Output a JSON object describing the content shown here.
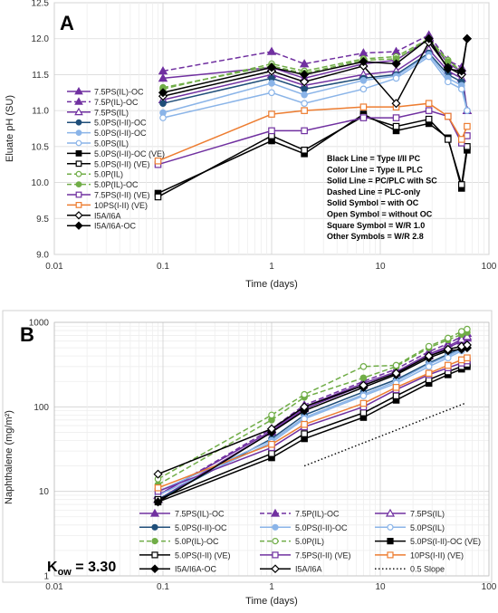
{
  "chart_data": [
    {
      "type": "line",
      "panel_label": "A",
      "xlabel": "Time (days)",
      "ylabel": "Eluate pH (SU)",
      "xscale": "log",
      "xlim": [
        0.01,
        100
      ],
      "ylim": [
        9.0,
        12.5
      ],
      "x_ticks": [
        "0.01",
        "0.1",
        "1",
        "10",
        "100"
      ],
      "y_ticks": [
        "9.0",
        "9.5",
        "10.0",
        "10.5",
        "11.0",
        "11.5",
        "12.0",
        "12.5"
      ],
      "grid": true,
      "legend_position": "left-middle",
      "annotation_lines": [
        "Black Line = Type I/II PC",
        "Color Line = Type IL PLC",
        "Solid Line = PC/PLC with SC",
        "Dashed Line = PLC-only",
        "Solid Symbol = with OC",
        "Open Symbol = without OC",
        "Square Symbol = W/R 1.0",
        "Other Symbols = W/R 2.8"
      ],
      "series": [
        {
          "name": "7.5PS(IL)-OC",
          "color": "#7030a0",
          "dash": false,
          "marker": "triangle",
          "filled": true,
          "x": [
            0.1,
            1,
            2,
            7,
            14,
            28,
            42,
            56,
            63
          ],
          "y": [
            11.45,
            11.6,
            11.45,
            11.65,
            11.7,
            12.0,
            11.65,
            11.55,
            11.0
          ]
        },
        {
          "name": "7.5P(IL)-OC",
          "color": "#7030a0",
          "dash": true,
          "marker": "triangle",
          "filled": true,
          "x": [
            0.1,
            1,
            2,
            7,
            14,
            28,
            42,
            56
          ],
          "y": [
            11.55,
            11.82,
            11.65,
            11.8,
            11.82,
            12.05,
            11.7,
            11.6
          ]
        },
        {
          "name": "7.5PS(IL)",
          "color": "#7030a0",
          "dash": false,
          "marker": "triangle",
          "filled": false,
          "x": [
            0.1,
            1,
            2,
            7,
            14,
            28,
            42,
            56,
            63
          ],
          "y": [
            11.15,
            11.5,
            11.35,
            11.5,
            11.55,
            11.85,
            11.55,
            11.45,
            11.0
          ]
        },
        {
          "name": "5.0PS(I-II)-OC",
          "color": "#1f4e79",
          "dash": false,
          "marker": "circle",
          "filled": true,
          "x": [
            0.1,
            1,
            2,
            7,
            14,
            28,
            42,
            56,
            63
          ],
          "y": [
            11.1,
            11.45,
            11.3,
            11.45,
            11.5,
            11.8,
            11.5,
            11.4,
            11.0
          ]
        },
        {
          "name": "5.0PS(I-II)-OC",
          "color": "#8ab4e8",
          "dash": false,
          "marker": "circle",
          "filled": true,
          "x": [
            0.1,
            1,
            2,
            7,
            14,
            28,
            42,
            56,
            63
          ],
          "y": [
            10.97,
            11.38,
            11.22,
            11.42,
            11.48,
            11.78,
            11.45,
            11.35,
            11.0
          ]
        },
        {
          "name": "5.0PS(IL)",
          "color": "#8ab4e8",
          "dash": false,
          "marker": "circle",
          "filled": false,
          "x": [
            0.1,
            1,
            2,
            7,
            14,
            28,
            42,
            56,
            63
          ],
          "y": [
            10.9,
            11.25,
            11.1,
            11.3,
            11.45,
            11.75,
            11.4,
            11.3,
            11.0
          ]
        },
        {
          "name": "5.0PS(I-II)-OC (VE)",
          "color": "#000000",
          "dash": false,
          "marker": "square",
          "filled": true,
          "x": [
            0.09,
            1,
            2,
            7,
            14,
            28,
            42,
            56,
            63
          ],
          "y": [
            9.85,
            10.58,
            10.4,
            10.95,
            10.72,
            10.82,
            10.62,
            9.92,
            10.45
          ]
        },
        {
          "name": "5.0PS(I-II) (VE)",
          "color": "#000000",
          "dash": false,
          "marker": "square",
          "filled": false,
          "x": [
            0.09,
            1,
            2,
            7,
            14,
            28,
            42,
            56,
            63
          ],
          "y": [
            9.8,
            10.65,
            10.45,
            10.92,
            10.78,
            10.88,
            10.6,
            9.97,
            10.5
          ]
        },
        {
          "name": "5.0P(IL)",
          "color": "#70ad47",
          "dash": true,
          "marker": "circle",
          "filled": false,
          "x": [
            0.1,
            1,
            2,
            7,
            14,
            28,
            42,
            56
          ],
          "y": [
            11.3,
            11.65,
            11.55,
            11.72,
            11.75,
            12.0,
            11.7,
            11.55
          ]
        },
        {
          "name": "5.0P(IL)-OC",
          "color": "#70ad47",
          "dash": true,
          "marker": "circle",
          "filled": true,
          "x": [
            0.1,
            1,
            2,
            7,
            14,
            28,
            42,
            56
          ],
          "y": [
            11.32,
            11.62,
            11.52,
            11.7,
            11.72,
            11.98,
            11.68,
            11.55
          ]
        },
        {
          "name": "7.5PS(I-II) (VE)",
          "color": "#7030a0",
          "dash": false,
          "marker": "square",
          "filled": false,
          "x": [
            0.09,
            1,
            2,
            7,
            14,
            28,
            42,
            56,
            63
          ],
          "y": [
            10.25,
            10.72,
            10.72,
            10.9,
            10.9,
            11.0,
            10.92,
            10.55,
            10.65
          ]
        },
        {
          "name": "10PS(I-II) (VE)",
          "color": "#ed7d31",
          "dash": false,
          "marker": "square",
          "filled": false,
          "x": [
            0.09,
            1,
            2,
            7,
            14,
            28,
            42,
            56,
            63
          ],
          "y": [
            10.3,
            10.95,
            11.0,
            11.05,
            11.05,
            11.1,
            10.92,
            10.6,
            10.78
          ]
        },
        {
          "name": "I5A/I6A",
          "color": "#000000",
          "dash": false,
          "marker": "diamond",
          "filled": false,
          "x": [
            0.1,
            1,
            2,
            7,
            14,
            28,
            42,
            56,
            63
          ],
          "y": [
            11.2,
            11.55,
            11.4,
            11.62,
            11.1,
            11.95,
            11.6,
            11.5,
            12.0
          ]
        },
        {
          "name": "I5A/I6A-OC",
          "color": "#000000",
          "dash": false,
          "marker": "diamond",
          "filled": true,
          "x": [
            0.1,
            1,
            2,
            7,
            14,
            28,
            42,
            56,
            63
          ],
          "y": [
            11.25,
            11.6,
            11.5,
            11.68,
            11.65,
            12.0,
            11.58,
            11.55,
            12.0
          ]
        }
      ]
    },
    {
      "type": "line",
      "panel_label": "B",
      "xlabel": "Time (days)",
      "ylabel": "Naphthalene (mg/m²)",
      "xscale": "log",
      "yscale": "log",
      "xlim": [
        0.01,
        100
      ],
      "ylim": [
        1,
        1000
      ],
      "x_ticks": [
        "0.01",
        "0.1",
        "1",
        "10",
        "100"
      ],
      "y_ticks": [
        "1",
        "10",
        "100",
        "1000"
      ],
      "grid": true,
      "legend_position": "bottom",
      "kow_label": "K",
      "kow_subscript": "ow",
      "kow_value": " = 3.30",
      "slope_line": {
        "name": "0.5 Slope",
        "x": [
          2,
          60
        ],
        "y": [
          20,
          110
        ]
      },
      "series": [
        {
          "name": "7.5PS(IL)-OC",
          "color": "#7030a0",
          "dash": false,
          "marker": "triangle",
          "filled": true,
          "x": [
            0.09,
            1,
            2,
            7,
            14,
            28,
            42,
            56,
            63
          ],
          "y": [
            8,
            50,
            95,
            180,
            250,
            400,
            500,
            600,
            650
          ]
        },
        {
          "name": "7.5P(IL)-OC",
          "color": "#7030a0",
          "dash": true,
          "marker": "triangle",
          "filled": true,
          "x": [
            0.09,
            1,
            2,
            7,
            14,
            28,
            42,
            56,
            63
          ],
          "y": [
            9,
            55,
            105,
            200,
            280,
            450,
            560,
            680,
            740
          ]
        },
        {
          "name": "7.5PS(IL)",
          "color": "#7030a0",
          "dash": false,
          "marker": "triangle",
          "filled": false,
          "x": [
            0.09,
            1,
            2,
            7,
            14,
            28,
            42,
            56,
            63
          ],
          "y": [
            9,
            52,
            100,
            190,
            260,
            420,
            520,
            630,
            680
          ]
        },
        {
          "name": "5.0PS(I-II)-OC",
          "color": "#1f4e79",
          "dash": false,
          "marker": "circle",
          "filled": true,
          "x": [
            0.09,
            1,
            2,
            7,
            14,
            28,
            42,
            56,
            63
          ],
          "y": [
            8,
            42,
            80,
            150,
            210,
            330,
            420,
            500,
            540
          ]
        },
        {
          "name": "5.0PS(I-II)-OC",
          "color": "#8ab4e8",
          "dash": false,
          "marker": "circle",
          "filled": true,
          "x": [
            0.09,
            1,
            2,
            7,
            14,
            28,
            42,
            56,
            63
          ],
          "y": [
            10,
            40,
            75,
            140,
            200,
            320,
            400,
            480,
            520
          ]
        },
        {
          "name": "5.0PS(IL)",
          "color": "#8ab4e8",
          "dash": false,
          "marker": "circle",
          "filled": false,
          "x": [
            0.09,
            1,
            2,
            7,
            14,
            28,
            42,
            56,
            63
          ],
          "y": [
            9,
            38,
            72,
            135,
            190,
            300,
            380,
            460,
            500
          ]
        },
        {
          "name": "5.0P(IL)-OC",
          "color": "#70ad47",
          "dash": true,
          "marker": "circle",
          "filled": true,
          "x": [
            0.09,
            1,
            2,
            7,
            14,
            28,
            42,
            56,
            63
          ],
          "y": [
            12,
            70,
            130,
            220,
            300,
            500,
            620,
            720,
            760
          ]
        },
        {
          "name": "5.0P(IL)",
          "color": "#70ad47",
          "dash": true,
          "marker": "circle",
          "filled": false,
          "x": [
            0.09,
            1,
            2,
            7,
            14,
            28,
            42,
            56,
            63
          ],
          "y": [
            14,
            80,
            140,
            300,
            310,
            520,
            650,
            780,
            830
          ]
        },
        {
          "name": "5.0PS(I-II)-OC (VE)",
          "color": "#000000",
          "dash": false,
          "marker": "square",
          "filled": true,
          "x": [
            0.09,
            1,
            2,
            7,
            14,
            28,
            42,
            56,
            63
          ],
          "y": [
            7.5,
            25,
            42,
            75,
            120,
            190,
            240,
            280,
            300
          ]
        },
        {
          "name": "5.0PS(I-II) (VE)",
          "color": "#000000",
          "dash": false,
          "marker": "square",
          "filled": false,
          "x": [
            0.09,
            1,
            2,
            7,
            14,
            28,
            42,
            56,
            63
          ],
          "y": [
            8,
            28,
            48,
            85,
            135,
            210,
            260,
            300,
            320
          ]
        },
        {
          "name": "7.5PS(I-II) (VE)",
          "color": "#7030a0",
          "dash": false,
          "marker": "square",
          "filled": false,
          "x": [
            0.09,
            1,
            2,
            7,
            14,
            28,
            42,
            56,
            63
          ],
          "y": [
            10,
            33,
            58,
            100,
            160,
            240,
            290,
            330,
            350
          ]
        },
        {
          "name": "10PS(I-II) (VE)",
          "color": "#ed7d31",
          "dash": false,
          "marker": "square",
          "filled": false,
          "x": [
            0.09,
            1,
            2,
            7,
            14,
            28,
            42,
            56,
            63
          ],
          "y": [
            11,
            36,
            62,
            110,
            170,
            250,
            310,
            360,
            380
          ]
        },
        {
          "name": "I5A/I6A-OC",
          "color": "#000000",
          "dash": false,
          "marker": "diamond",
          "filled": true,
          "x": [
            0.09,
            1,
            2,
            7,
            14,
            28,
            42,
            56,
            63
          ],
          "y": [
            7.5,
            50,
            90,
            170,
            240,
            380,
            460,
            480,
            500
          ]
        },
        {
          "name": "I5A/I6A",
          "color": "#000000",
          "dash": false,
          "marker": "diamond",
          "filled": false,
          "x": [
            0.09,
            1,
            2,
            7,
            14,
            28,
            42,
            56,
            63
          ],
          "y": [
            16,
            55,
            100,
            180,
            250,
            400,
            480,
            520,
            540
          ]
        }
      ]
    }
  ]
}
